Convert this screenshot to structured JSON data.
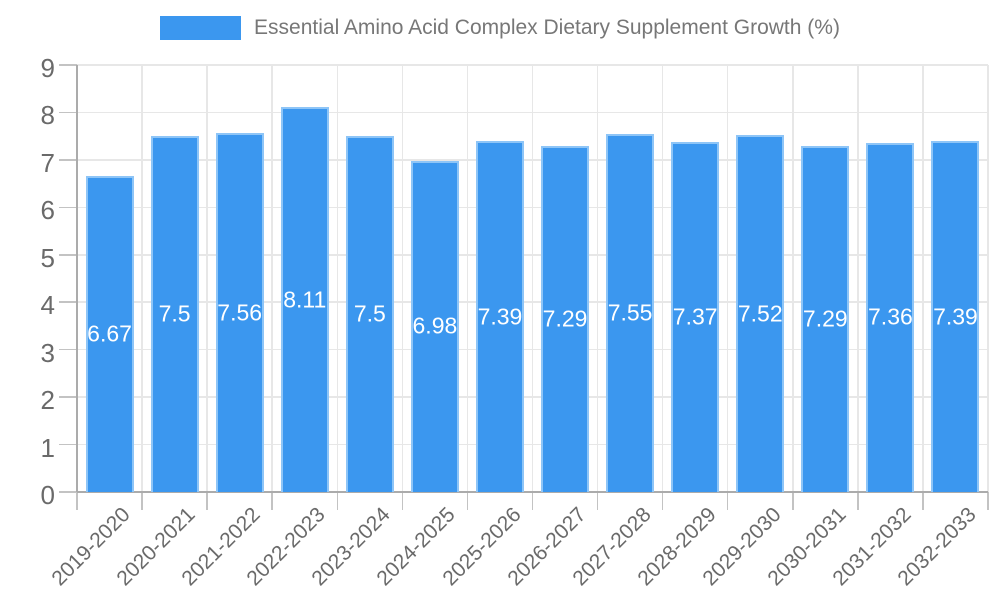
{
  "legend": {
    "label": "Essential Amino Acid Complex Dietary Supplement Growth (%)"
  },
  "chart_data": {
    "type": "bar",
    "title": "Essential Amino Acid Complex Dietary Supplement Growth (%)",
    "categories": [
      "2019-2020",
      "2020-2021",
      "2021-2022",
      "2022-2023",
      "2023-2024",
      "2024-2025",
      "2025-2026",
      "2026-2027",
      "2027-2028",
      "2028-2029",
      "2029-2030",
      "2030-2031",
      "2031-2032",
      "2032-2033"
    ],
    "values": [
      6.67,
      7.5,
      7.56,
      8.11,
      7.5,
      6.98,
      7.39,
      7.29,
      7.55,
      7.37,
      7.52,
      7.29,
      7.36,
      7.39
    ],
    "value_labels": [
      "6.67",
      "7.5",
      "7.56",
      "8.11",
      "7.5",
      "6.98",
      "7.39",
      "7.29",
      "7.55",
      "7.37",
      "7.52",
      "7.29",
      "7.36",
      "7.39"
    ],
    "xlabel": "",
    "ylabel": "",
    "ylim": [
      0,
      9
    ],
    "y_ticks": [
      0,
      1,
      2,
      3,
      4,
      5,
      6,
      7,
      8,
      9
    ],
    "grid": true,
    "legend_position": "top",
    "bar_color": "#3b97ef",
    "bar_border_color": "#8ec5f7",
    "value_label_color": "#ffffff",
    "grid_color": "#e7e7e7",
    "axis_color": "#ababab",
    "tick_color": "#c3c3c3",
    "tick_text_color": "#6a6a6a",
    "legend_text_color": "#777777"
  }
}
